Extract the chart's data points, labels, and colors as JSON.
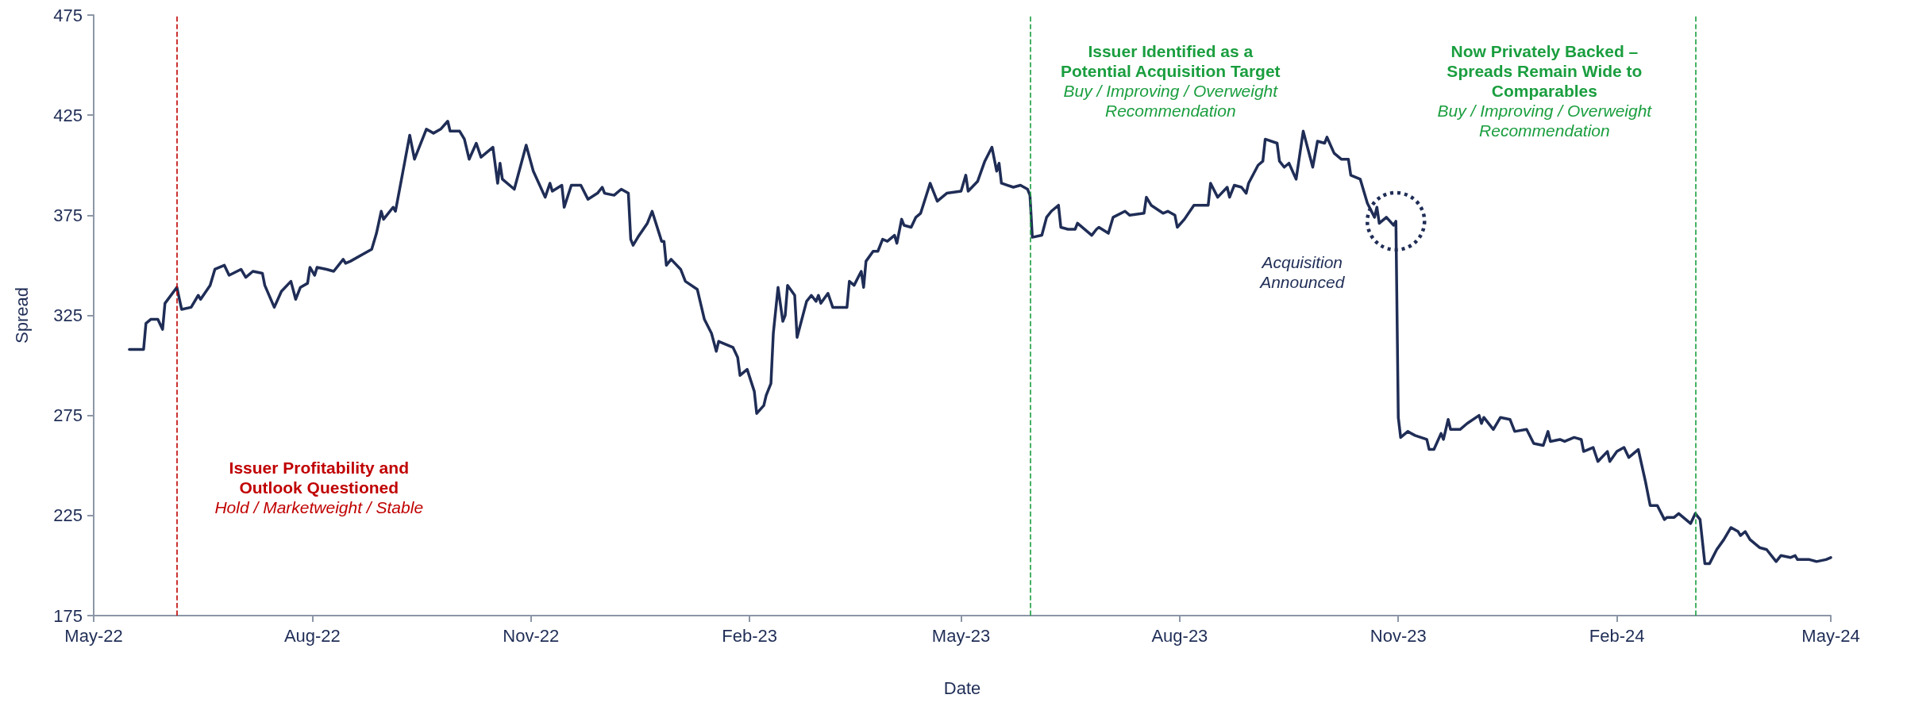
{
  "chart_data": {
    "type": "line",
    "xlabel": "Date",
    "ylabel": "Spread",
    "xlim": [
      "2022-05-01",
      "2024-05-01"
    ],
    "xticks": [
      {
        "value": "2022-05-01",
        "label": "May-22"
      },
      {
        "value": "2022-08-01",
        "label": "Aug-22"
      },
      {
        "value": "2022-11-01",
        "label": "Nov-22"
      },
      {
        "value": "2023-02-01",
        "label": "Feb-23"
      },
      {
        "value": "2023-05-01",
        "label": "May-23"
      },
      {
        "value": "2023-08-01",
        "label": "Aug-23"
      },
      {
        "value": "2023-11-01",
        "label": "Nov-23"
      },
      {
        "value": "2024-02-01",
        "label": "Feb-24"
      },
      {
        "value": "2024-05-01",
        "label": "May-24"
      }
    ],
    "ylim": [
      175,
      475
    ],
    "yticks": [
      175,
      225,
      275,
      325,
      375,
      425,
      475
    ],
    "series": [
      {
        "color": "#1f2d56",
        "x": [
          "2022-05-16",
          "2022-05-22",
          "2022-05-23",
          "2022-05-25",
          "2022-05-28",
          "2022-05-30",
          "2022-05-31",
          "2022-06-05",
          "2022-06-07",
          "2022-06-11",
          "2022-06-14",
          "2022-06-15",
          "2022-06-19",
          "2022-06-21",
          "2022-06-25",
          "2022-06-27",
          "2022-07-02",
          "2022-07-04",
          "2022-07-07",
          "2022-07-11",
          "2022-07-12",
          "2022-07-16",
          "2022-07-19",
          "2022-07-23",
          "2022-07-25",
          "2022-07-27",
          "2022-07-30",
          "2022-07-31",
          "2022-08-02",
          "2022-08-03",
          "2022-08-07",
          "2022-08-10",
          "2022-08-14",
          "2022-08-15",
          "2022-08-17",
          "2022-08-23",
          "2022-08-26",
          "2022-08-28",
          "2022-08-30",
          "2022-08-31",
          "2022-09-04",
          "2022-09-05",
          "2022-09-11",
          "2022-09-13",
          "2022-09-18",
          "2022-09-21",
          "2022-09-24",
          "2022-09-27",
          "2022-09-28",
          "2022-10-02",
          "2022-10-04",
          "2022-10-06",
          "2022-10-09",
          "2022-10-11",
          "2022-10-16",
          "2022-10-18",
          "2022-10-19",
          "2022-10-20",
          "2022-10-25",
          "2022-10-30",
          "2022-11-02",
          "2022-11-07",
          "2022-11-09",
          "2022-11-10",
          "2022-11-14",
          "2022-11-15",
          "2022-11-18",
          "2022-11-22",
          "2022-11-25",
          "2022-11-29",
          "2022-12-01",
          "2022-12-02",
          "2022-12-06",
          "2022-12-09",
          "2022-12-12",
          "2022-12-13",
          "2022-12-14",
          "2022-12-16",
          "2022-12-20",
          "2022-12-22",
          "2022-12-26",
          "2022-12-27",
          "2022-12-28",
          "2022-12-30",
          "2023-01-03",
          "2023-01-05",
          "2023-01-10",
          "2023-01-13",
          "2023-01-16",
          "2023-01-18",
          "2023-01-19",
          "2023-01-25",
          "2023-01-27",
          "2023-01-28",
          "2023-01-31",
          "2023-02-03",
          "2023-02-04",
          "2023-02-07",
          "2023-02-08",
          "2023-02-10",
          "2023-02-11",
          "2023-02-13",
          "2023-02-15",
          "2023-02-16",
          "2023-02-17",
          "2023-02-20",
          "2023-02-21",
          "2023-02-25",
          "2023-02-27",
          "2023-03-01",
          "2023-03-02",
          "2023-03-03",
          "2023-03-06",
          "2023-03-08",
          "2023-03-14",
          "2023-03-15",
          "2023-03-17",
          "2023-03-20",
          "2023-03-21",
          "2023-03-22",
          "2023-03-25",
          "2023-03-27",
          "2023-03-29",
          "2023-03-31",
          "2023-04-03",
          "2023-04-04",
          "2023-04-06",
          "2023-04-07",
          "2023-04-10",
          "2023-04-12",
          "2023-04-14",
          "2023-04-18",
          "2023-04-19",
          "2023-04-21",
          "2023-04-25",
          "2023-05-01",
          "2023-05-03",
          "2023-05-04",
          "2023-05-08",
          "2023-05-11",
          "2023-05-14",
          "2023-05-16",
          "2023-05-17",
          "2023-05-18",
          "2023-05-23",
          "2023-05-26",
          "2023-05-29",
          "2023-05-30",
          "2023-05-31",
          "2023-06-04",
          "2023-06-06",
          "2023-06-08",
          "2023-06-11",
          "2023-06-12",
          "2023-06-15",
          "2023-06-18",
          "2023-06-19",
          "2023-06-25",
          "2023-06-27",
          "2023-06-28",
          "2023-07-02",
          "2023-07-04",
          "2023-07-09",
          "2023-07-11",
          "2023-07-17",
          "2023-07-18",
          "2023-07-20",
          "2023-07-25",
          "2023-07-27",
          "2023-07-30",
          "2023-07-31",
          "2023-08-03",
          "2023-08-07",
          "2023-08-13",
          "2023-08-14",
          "2023-08-17",
          "2023-08-21",
          "2023-08-22",
          "2023-08-24",
          "2023-08-27",
          "2023-08-29",
          "2023-08-30",
          "2023-09-03",
          "2023-09-05",
          "2023-09-06",
          "2023-09-11",
          "2023-09-12",
          "2023-09-14",
          "2023-09-16",
          "2023-09-19",
          "2023-09-22",
          "2023-09-26",
          "2023-09-28",
          "2023-10-01",
          "2023-10-02",
          "2023-10-05",
          "2023-10-08",
          "2023-10-11",
          "2023-10-12",
          "2023-10-16",
          "2023-10-19",
          "2023-10-22",
          "2023-10-23",
          "2023-10-24",
          "2023-10-27",
          "2023-10-30",
          "2023-10-31",
          "2023-11-01",
          "2023-11-02",
          "2023-11-05",
          "2023-11-08",
          "2023-11-13",
          "2023-11-14",
          "2023-11-16",
          "2023-11-19",
          "2023-11-20",
          "2023-11-22",
          "2023-11-23",
          "2023-11-27",
          "2023-11-30",
          "2023-12-05",
          "2023-12-06",
          "2023-12-07",
          "2023-12-11",
          "2023-12-14",
          "2023-12-18",
          "2023-12-20",
          "2023-12-25",
          "2023-12-28",
          "2024-01-01",
          "2024-01-03",
          "2024-01-04",
          "2024-01-08",
          "2024-01-10",
          "2024-01-14",
          "2024-01-17",
          "2024-01-18",
          "2024-01-22",
          "2024-01-24",
          "2024-01-28",
          "2024-01-29",
          "2024-02-01",
          "2024-02-04",
          "2024-02-06",
          "2024-02-10",
          "2024-02-13",
          "2024-02-15",
          "2024-02-18",
          "2024-02-21",
          "2024-02-22",
          "2024-02-25",
          "2024-02-27",
          "2024-03-03",
          "2024-03-05",
          "2024-03-07",
          "2024-03-09",
          "2024-03-11",
          "2024-03-14",
          "2024-03-17",
          "2024-03-20",
          "2024-03-23",
          "2024-03-24",
          "2024-03-26",
          "2024-03-28",
          "2024-04-01",
          "2024-04-04",
          "2024-04-08",
          "2024-04-10",
          "2024-04-14",
          "2024-04-16",
          "2024-04-17",
          "2024-04-22",
          "2024-04-25",
          "2024-04-29",
          "2024-05-01"
        ],
        "values": [
          308,
          308,
          321,
          323,
          323,
          318,
          331,
          339,
          328,
          329,
          335,
          333,
          340,
          348,
          350,
          345,
          348,
          344,
          347,
          346,
          340,
          329,
          337,
          342,
          333,
          339,
          341,
          349,
          345,
          349,
          348,
          347,
          353,
          351,
          352,
          356,
          358,
          366,
          377,
          373,
          379,
          377,
          415,
          403,
          418,
          416,
          418,
          422,
          417,
          417,
          413,
          403,
          411,
          404,
          409,
          391,
          401,
          393,
          388,
          410,
          397,
          384,
          391,
          387,
          390,
          379,
          390,
          390,
          383,
          386,
          389,
          386,
          385,
          388,
          386,
          363,
          360,
          364,
          371,
          377,
          362,
          362,
          350,
          353,
          348,
          342,
          338,
          323,
          316,
          307,
          312,
          309,
          304,
          295,
          298,
          287,
          276,
          280,
          285,
          291,
          316,
          339,
          322,
          325,
          340,
          335,
          314,
          332,
          335,
          332,
          335,
          331,
          336,
          329,
          329,
          342,
          340,
          347,
          339,
          352,
          357,
          357,
          363,
          362,
          365,
          361,
          373,
          370,
          369,
          374,
          376,
          391,
          388,
          382,
          386,
          387,
          395,
          387,
          392,
          402,
          409,
          397,
          401,
          391,
          389,
          390,
          388,
          385,
          364,
          365,
          374,
          377,
          380,
          369,
          368,
          368,
          371,
          365,
          368,
          369,
          366,
          374,
          377,
          375,
          376,
          384,
          380,
          376,
          377,
          375,
          369,
          373,
          380,
          380,
          391,
          384,
          389,
          384,
          390,
          389,
          386,
          391,
          400,
          402,
          413,
          411,
          402,
          399,
          401,
          393,
          417,
          399,
          412,
          411,
          414,
          406,
          403,
          403,
          395,
          393,
          381,
          374,
          379,
          371,
          374,
          370,
          372,
          274,
          264,
          267,
          265,
          263,
          258,
          258,
          266,
          263,
          273,
          268,
          268,
          271,
          275,
          271,
          274,
          268,
          274,
          273,
          267,
          268,
          261,
          260,
          267,
          262,
          263,
          262,
          264,
          263,
          257,
          259,
          252,
          257,
          252,
          257,
          259,
          254,
          258,
          242,
          230,
          230,
          223,
          224,
          224,
          226,
          221,
          226,
          223,
          201,
          201,
          208,
          213,
          219,
          217,
          215,
          217,
          213,
          209,
          208,
          202,
          205,
          204,
          205,
          203,
          203,
          202,
          203,
          204
        ]
      }
    ],
    "ref_lines": [
      {
        "axis": "x",
        "value": "2022-06-05",
        "color": "#c00000",
        "line_style": "dashed",
        "label": "Issuer Profitability and\nOutlook Questioned"
      },
      {
        "axis": "x",
        "value": "2023-05-30",
        "color": "#1a9e3f",
        "line_style": "dashed",
        "label": "Issuer Identified as a\nPotential Acquisition Target"
      },
      {
        "axis": "x",
        "value": "2024-03-05",
        "color": "#1a9e3f",
        "line_style": "dashed",
        "label": "Now Privately Backed –\nSpreads Remain Wide to\nComparables"
      }
    ],
    "annotations": [
      "Hold / Marketweight / Stable",
      "Buy / Improving / Overweight\nRecommendation",
      "Buy / Improving / Overweight\nRecommendation",
      "Acquisition\nAnnounced"
    ]
  }
}
